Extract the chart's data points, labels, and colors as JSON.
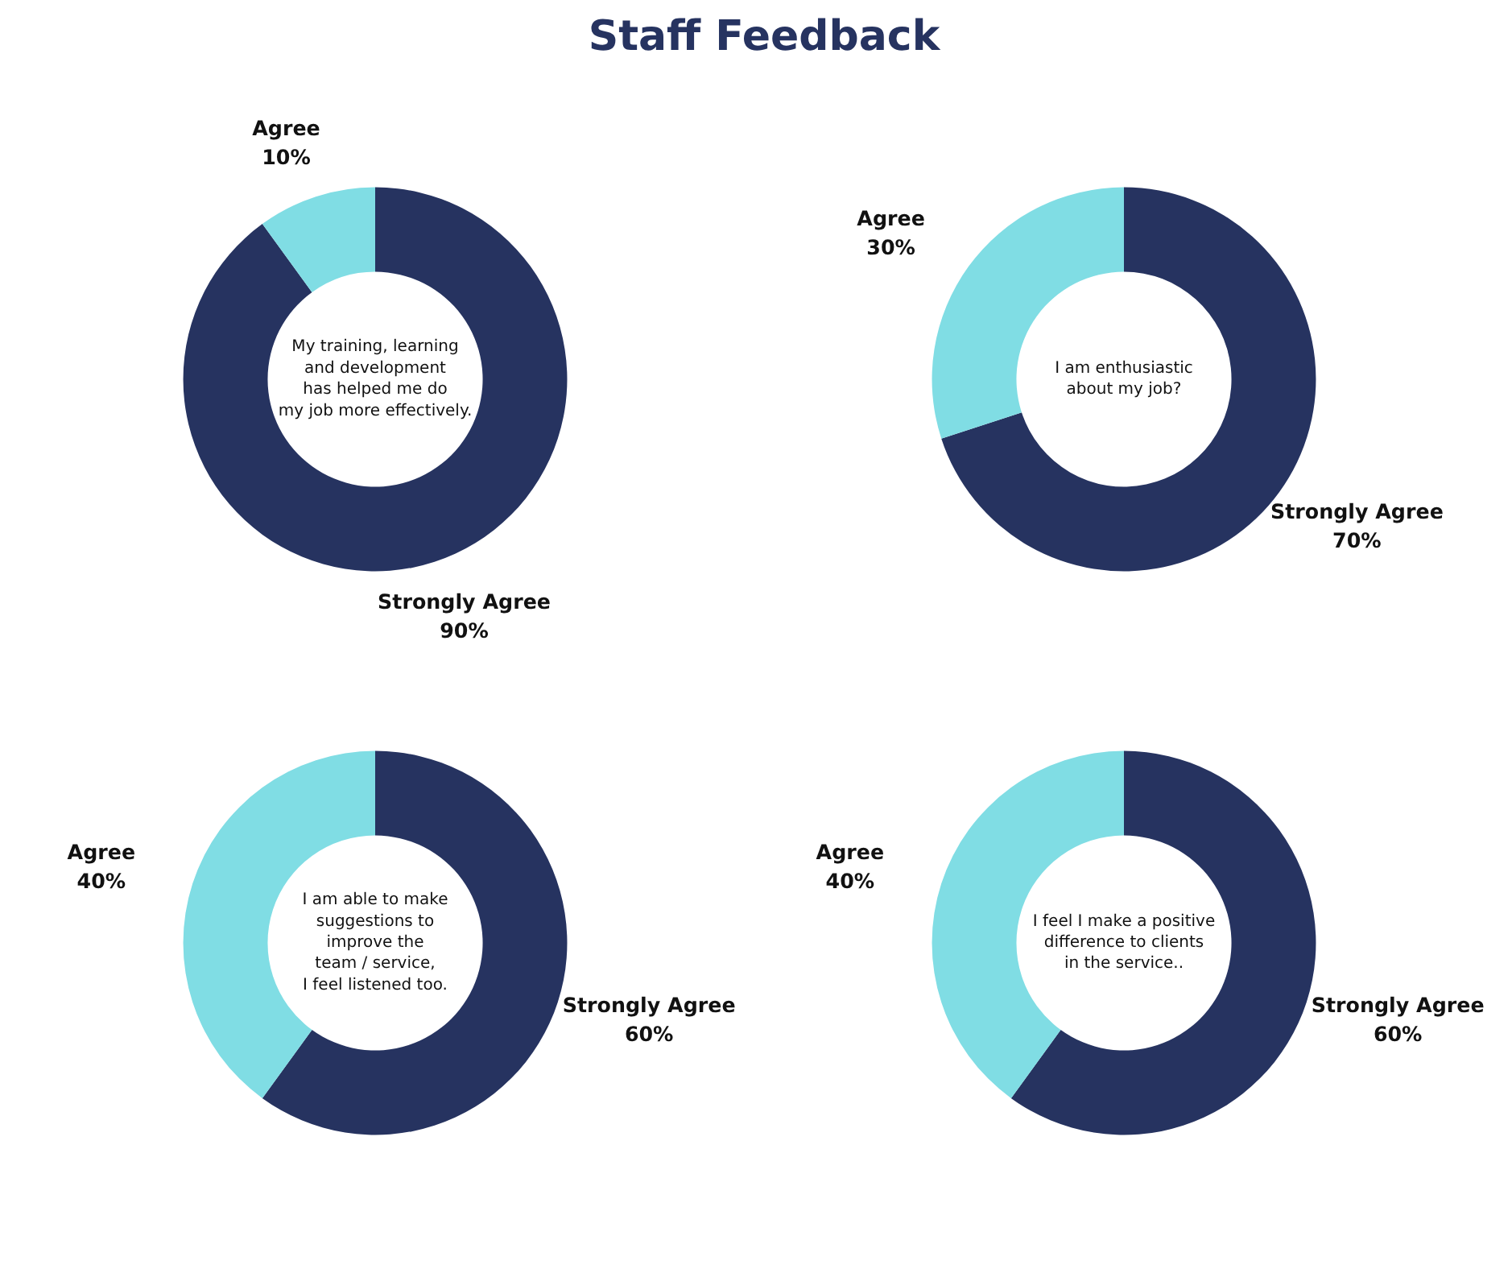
{
  "chart_data": [
    {
      "type": "donut",
      "title": "Staff Feedback",
      "categories": [
        "Strongly Agree",
        "Agree"
      ],
      "values": [
        90,
        10
      ],
      "value_labels": [
        "90%",
        "10%"
      ],
      "colors": [
        "#263360",
        "#80dde4"
      ],
      "annotations": [
        "My training, learning\nand development\nhas helped me do\nmy job more effectively."
      ]
    },
    {
      "type": "donut",
      "categories": [
        "Strongly Agree",
        "Agree"
      ],
      "values": [
        70,
        30
      ],
      "value_labels": [
        "70%",
        "30%"
      ],
      "colors": [
        "#263360",
        "#80dde4"
      ],
      "annotations": [
        "I am enthusiastic\nabout my job?"
      ]
    },
    {
      "type": "donut",
      "categories": [
        "Strongly Agree",
        "Agree"
      ],
      "values": [
        60,
        40
      ],
      "value_labels": [
        "60%",
        "40%"
      ],
      "colors": [
        "#263360",
        "#80dde4"
      ],
      "annotations": [
        "I am able to make\nsuggestions to\nimprove the\nteam / service,\nI feel listened too."
      ]
    },
    {
      "type": "donut",
      "categories": [
        "Strongly Agree",
        "Agree"
      ],
      "values": [
        60,
        40
      ],
      "value_labels": [
        "60%",
        "40%"
      ],
      "colors": [
        "#263360",
        "#80dde4"
      ],
      "annotations": [
        "I feel I make a positive\ndifference to clients\nin the service.."
      ]
    }
  ]
}
